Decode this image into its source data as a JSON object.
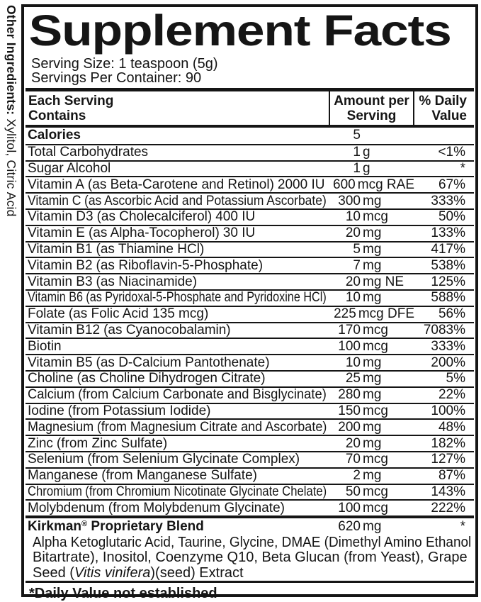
{
  "colors": {
    "ink": "#151515",
    "background": "#ffffff"
  },
  "side_text": {
    "bold": "Other Ingredients:",
    "rest": " Xylitol, Citric Acid"
  },
  "panel": {
    "title": "Supplement Facts",
    "serving_size": "Serving Size: 1 teaspoon (5g)",
    "servings_per_container": "Servings Per Container: 90",
    "header": {
      "col1_line1": "Each Serving",
      "col1_line2": "Contains",
      "col2_line1": "Amount per",
      "col2_line2": "Serving",
      "col3_line1": "% Daily",
      "col3_line2": "Value"
    },
    "rows": [
      {
        "name": "Calories",
        "bold": true,
        "amount_num": "5",
        "amount_unit": "",
        "pct": ""
      },
      {
        "name": "Total Carbohydrates",
        "amount_num": "1",
        "amount_unit": "g",
        "pct": "<1%"
      },
      {
        "name": "Sugar Alcohol",
        "amount_num": "1",
        "amount_unit": "g",
        "pct": "*"
      },
      {
        "name": "Vitamin A",
        "detail": "(as Beta-Carotene and Retinol)",
        "post": "2000 IU",
        "amount_num": "600",
        "amount_unit": "mcg RAE",
        "pct": "67%"
      },
      {
        "name": "Vitamin C",
        "detail": "(as Ascorbic Acid and Potassium Ascorbate)",
        "amount_num": "300",
        "amount_unit": "mg",
        "pct": "333%"
      },
      {
        "name": "Vitamin D3",
        "detail": "(as Cholecalciferol)",
        "post": "400 IU",
        "amount_num": "10",
        "amount_unit": "mcg",
        "pct": "50%"
      },
      {
        "name": "Vitamin E",
        "detail": "(as Alpha-Tocopherol)",
        "post": "30 IU",
        "amount_num": "20",
        "amount_unit": "mg",
        "pct": "133%"
      },
      {
        "name": "Vitamin B1",
        "detail": "(as Thiamine HCl)",
        "amount_num": "5",
        "amount_unit": "mg",
        "pct": "417%"
      },
      {
        "name": "Vitamin B2",
        "detail": "(as Riboflavin-5-Phosphate)",
        "amount_num": "7",
        "amount_unit": "mg",
        "pct": "538%"
      },
      {
        "name": "Vitamin B3",
        "detail": "(as Niacinamide)",
        "amount_num": "20",
        "amount_unit": "mg NE",
        "pct": "125%"
      },
      {
        "name": "Vitamin B6",
        "detail": "(as Pyridoxal-5-Phosphate and Pyridoxine HCl)",
        "amount_num": "10",
        "amount_unit": "mg",
        "pct": "588%"
      },
      {
        "name": "Folate",
        "detail": "(as Folic Acid 135 mcg)",
        "amount_num": "225",
        "amount_unit": "mcg DFE",
        "pct": "56%"
      },
      {
        "name": "Vitamin B12",
        "detail": "(as Cyanocobalamin)",
        "amount_num": "170",
        "amount_unit": "mcg",
        "pct": "7083%"
      },
      {
        "name": "Biotin",
        "amount_num": "100",
        "amount_unit": "mcg",
        "pct": "333%"
      },
      {
        "name": "Vitamin B5",
        "detail": "(as D-Calcium Pantothenate)",
        "amount_num": "10",
        "amount_unit": "mg",
        "pct": "200%"
      },
      {
        "name": "Choline",
        "detail": "(as Choline Dihydrogen Citrate)",
        "amount_num": "25",
        "amount_unit": "mg",
        "pct": "5%"
      },
      {
        "name": "Calcium",
        "detail": "(from Calcium Carbonate and Bisglycinate)",
        "amount_num": "280",
        "amount_unit": "mg",
        "pct": "22%"
      },
      {
        "name": "Iodine",
        "detail": "(from Potassium Iodide)",
        "amount_num": "150",
        "amount_unit": "mcg",
        "pct": "100%"
      },
      {
        "name": "Magnesium",
        "detail": "(from Magnesium Citrate and Ascorbate)",
        "amount_num": "200",
        "amount_unit": "mg",
        "pct": "48%"
      },
      {
        "name": "Zinc",
        "detail": "(from Zinc Sulfate)",
        "amount_num": "20",
        "amount_unit": "mg",
        "pct": "182%"
      },
      {
        "name": "Selenium",
        "detail": "(from Selenium Glycinate Complex)",
        "amount_num": "70",
        "amount_unit": "mcg",
        "pct": "127%"
      },
      {
        "name": "Manganese",
        "detail": "(from Manganese Sulfate)",
        "amount_num": "2",
        "amount_unit": "mg",
        "pct": "87%"
      },
      {
        "name": "Chromium",
        "detail": "(from Chromium Nicotinate Glycinate Chelate)",
        "amount_num": "50",
        "amount_unit": "mcg",
        "pct": "143%"
      },
      {
        "name": "Molybdenum",
        "detail": "(from Molybdenum Glycinate)",
        "amount_num": "100",
        "amount_unit": "mcg",
        "pct": "222%"
      }
    ],
    "blend": {
      "name_pre": "Kirkman",
      "name_reg": "®",
      "name_post": " Proprietary Blend",
      "amount_num": "620",
      "amount_unit": "mg",
      "pct": "*",
      "desc_line1": "Alpha Ketoglutaric Acid, Taurine, Glycine, DMAE (Dimethyl Amino Ethanol",
      "desc_line2": "Bitartrate), Inositol, Coenzyme Q10, Beta Glucan (from Yeast), Grape",
      "desc_line3_pre": "Seed (",
      "desc_line3_italic": "Vitis vinifera",
      "desc_line3_post": ")(seed) Extract"
    },
    "footnote": "*Daily Value not established"
  }
}
